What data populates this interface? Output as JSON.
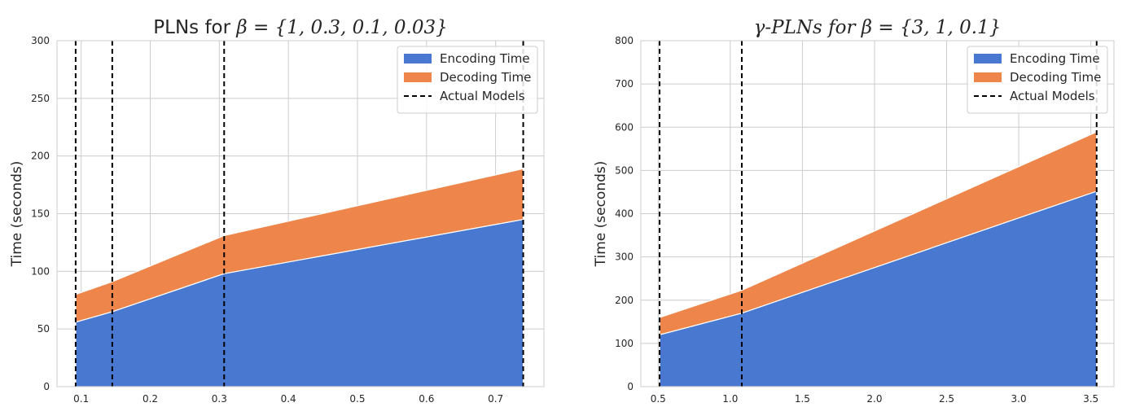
{
  "chart_data": [
    {
      "type": "area",
      "stacked": true,
      "title_prefix": "PLNs for ",
      "title_math": "β = {1, 0.3, 0.1, 0.03}",
      "ylabel": "Time (seconds)",
      "xlabel": "",
      "xlim": [
        0.065,
        0.77
      ],
      "ylim": [
        0,
        300
      ],
      "xticks": [
        0.1,
        0.2,
        0.3,
        0.4,
        0.5,
        0.6,
        0.7
      ],
      "xtick_labels": [
        "0.1",
        "0.2",
        "0.3",
        "0.4",
        "0.5",
        "0.6",
        "0.7"
      ],
      "yticks": [
        0,
        50,
        100,
        150,
        200,
        250,
        300
      ],
      "ytick_labels": [
        "0",
        "50",
        "100",
        "150",
        "200",
        "250",
        "300"
      ],
      "x": [
        0.092,
        0.145,
        0.307,
        0.74
      ],
      "series": [
        {
          "name": "Encoding Time",
          "color": "#4878cf",
          "values": [
            56,
            65,
            98,
            145
          ]
        },
        {
          "name": "Decoding Time",
          "color": "#ee854a",
          "values": [
            24,
            26,
            33,
            44
          ]
        }
      ],
      "vlines": {
        "name": "Actual Models",
        "x": [
          0.092,
          0.145,
          0.307,
          0.74
        ],
        "color": "#000000",
        "style": "dashed"
      },
      "grid": true,
      "legend_position": "top-right"
    },
    {
      "type": "area",
      "stacked": true,
      "title_prefix": "",
      "title_math": "γ-PLNs for β = {3, 1, 0.1}",
      "ylabel": "Time (seconds)",
      "xlabel": "",
      "xlim": [
        0.38,
        3.66
      ],
      "ylim": [
        0,
        800
      ],
      "xticks": [
        0.5,
        1.0,
        1.5,
        2.0,
        2.5,
        3.0,
        3.5
      ],
      "xtick_labels": [
        "0.5",
        "1.0",
        "1.5",
        "2.0",
        "2.5",
        "3.0",
        "3.5"
      ],
      "yticks": [
        0,
        100,
        200,
        300,
        400,
        500,
        600,
        700,
        800
      ],
      "ytick_labels": [
        "0",
        "100",
        "200",
        "300",
        "400",
        "500",
        "600",
        "700",
        "800"
      ],
      "x": [
        0.51,
        1.08,
        3.54
      ],
      "series": [
        {
          "name": "Encoding Time",
          "color": "#4878cf",
          "values": [
            120,
            170,
            452
          ]
        },
        {
          "name": "Decoding Time",
          "color": "#ee854a",
          "values": [
            40,
            53,
            137
          ]
        }
      ],
      "vlines": {
        "name": "Actual Models",
        "x": [
          0.51,
          1.08,
          3.54
        ],
        "color": "#000000",
        "style": "dashed"
      },
      "grid": true,
      "legend_position": "top-right"
    }
  ]
}
